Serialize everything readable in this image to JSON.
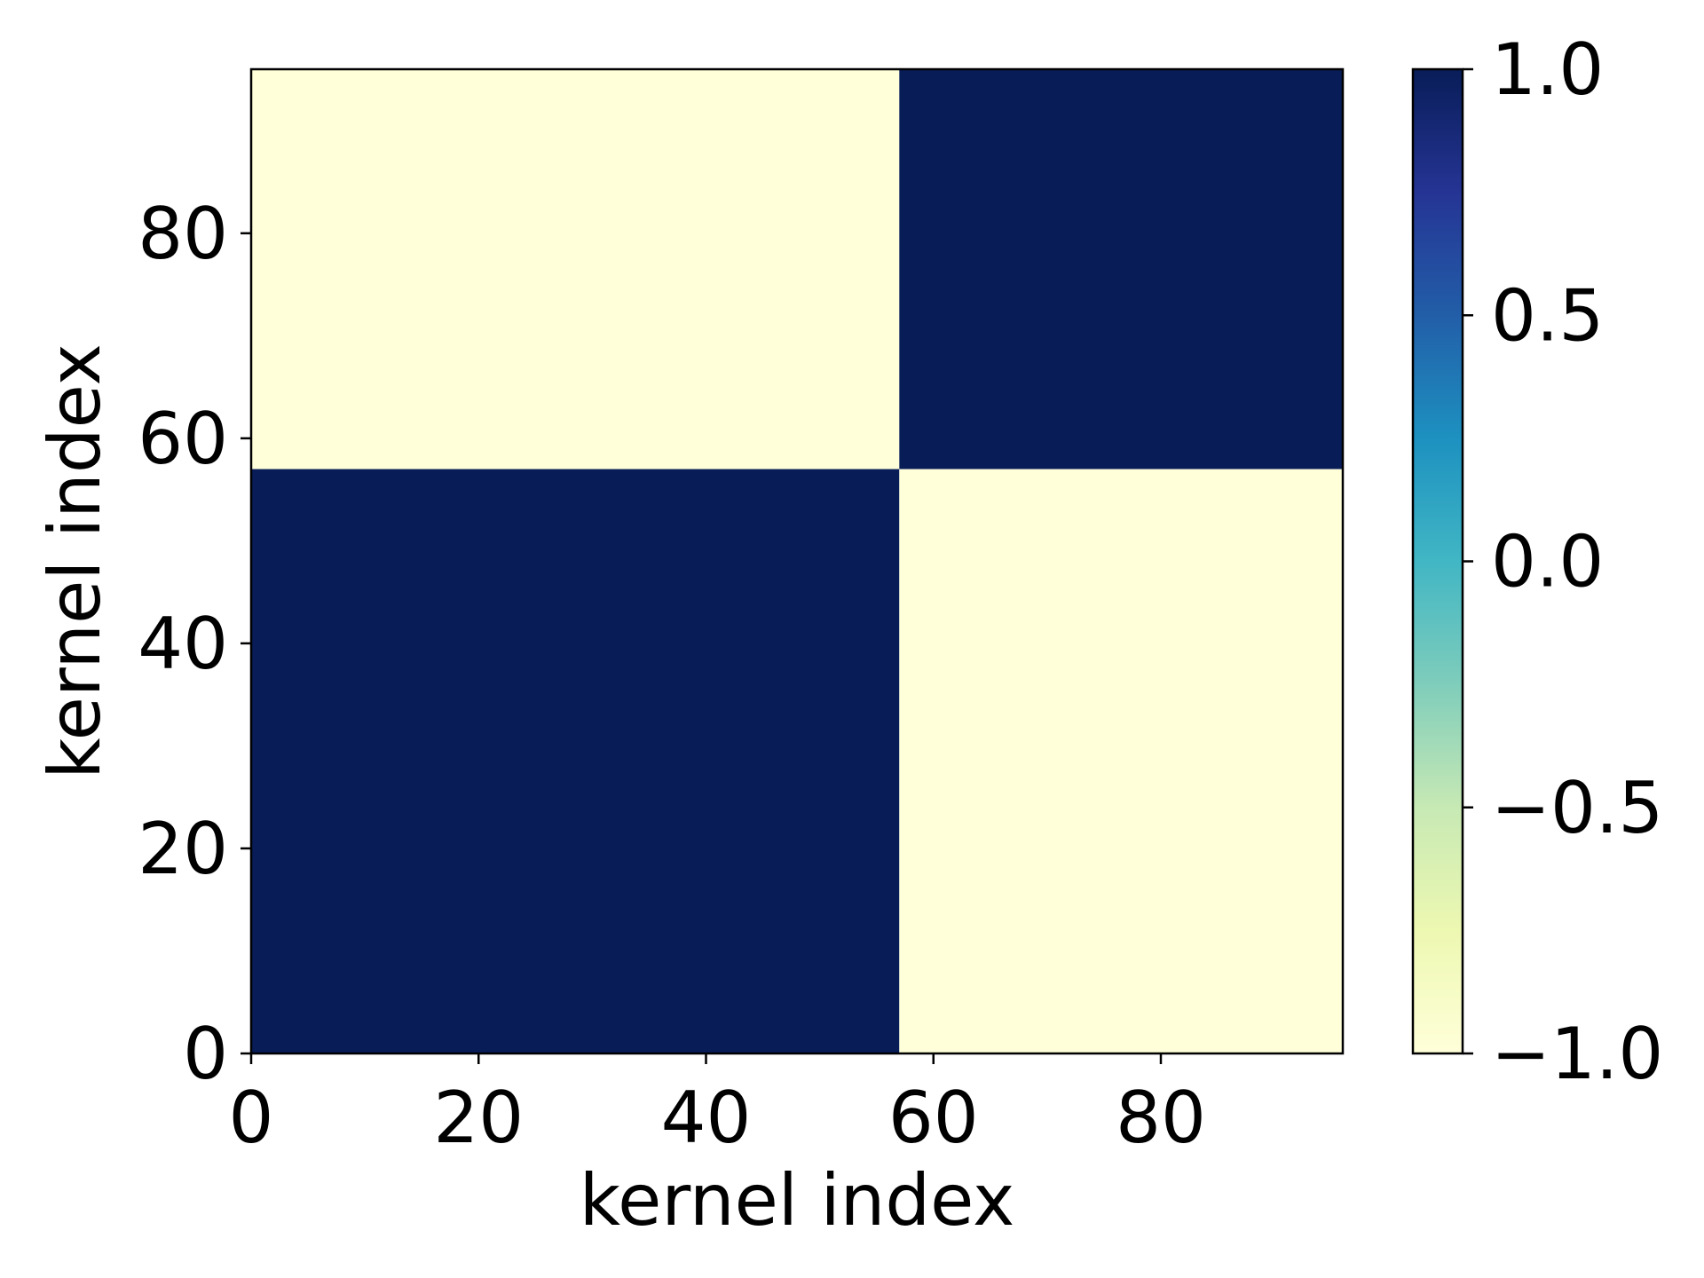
{
  "chart_data": {
    "type": "heatmap",
    "xlabel": "kernel index",
    "ylabel": "kernel index",
    "xlim": [
      0,
      96
    ],
    "ylim": [
      0,
      96
    ],
    "xticks": [
      0,
      20,
      40,
      60,
      80
    ],
    "xtick_labels": [
      "0",
      "20",
      "40",
      "60",
      "80"
    ],
    "yticks": [
      0,
      20,
      40,
      60,
      80
    ],
    "ytick_labels": [
      "0",
      "20",
      "40",
      "60",
      "80"
    ],
    "cells": [
      {
        "x0": 0,
        "x1": 57,
        "y0": 0,
        "y1": 57,
        "value": 1.0
      },
      {
        "x0": 57,
        "x1": 96,
        "y0": 0,
        "y1": 57,
        "value": -1.0
      },
      {
        "x0": 0,
        "x1": 57,
        "y0": 57,
        "y1": 96,
        "value": -1.0
      },
      {
        "x0": 57,
        "x1": 96,
        "y0": 57,
        "y1": 96,
        "value": 1.0
      }
    ],
    "colorbar": {
      "range": [
        -1.0,
        1.0
      ],
      "ticks": [
        1.0,
        0.5,
        0.0,
        -0.5,
        -1.0
      ],
      "tick_labels": [
        "1.0",
        "0.5",
        "0.0",
        "−0.5",
        "−1.0"
      ],
      "colormap": "YlGnBu",
      "stops": [
        "#ffffd9",
        "#edf8b1",
        "#c7e9b4",
        "#7fcdbb",
        "#41b6c4",
        "#1d91c0",
        "#225ea8",
        "#253494",
        "#081d58"
      ]
    },
    "grid": false
  }
}
